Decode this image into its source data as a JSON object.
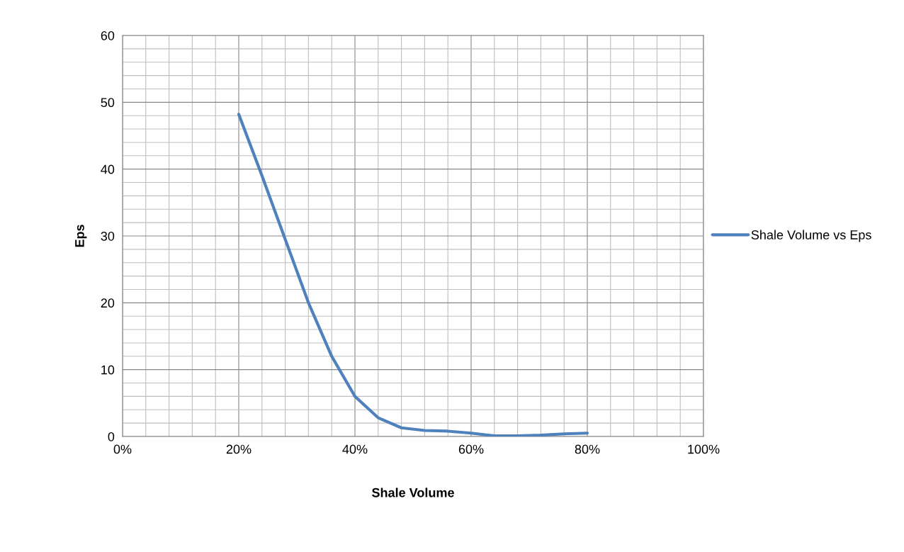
{
  "chart_data": {
    "type": "line",
    "xlabel": "Shale Volume",
    "ylabel": "Eps",
    "xlim": [
      0,
      1
    ],
    "ylim": [
      0,
      60
    ],
    "xticks": [
      {
        "value": 0,
        "label": "0%"
      },
      {
        "value": 0.2,
        "label": "20%"
      },
      {
        "value": 0.4,
        "label": "40%"
      },
      {
        "value": 0.6,
        "label": "60%"
      },
      {
        "value": 0.8,
        "label": "80%"
      },
      {
        "value": 1,
        "label": "100%"
      }
    ],
    "yticks": [
      0,
      10,
      20,
      30,
      40,
      50,
      60
    ],
    "grid": true,
    "legend": "right",
    "marker": "none",
    "line_style": "solid",
    "series": [
      {
        "name": "Shale Volume vs Eps",
        "color": "#4f81bd",
        "x": [
          0.2,
          0.24,
          0.28,
          0.32,
          0.36,
          0.4,
          0.44,
          0.48,
          0.52,
          0.56,
          0.6,
          0.64,
          0.68,
          0.72,
          0.76,
          0.8
        ],
        "values": [
          48.2,
          39,
          29.5,
          20,
          12,
          6,
          2.8,
          1.3,
          0.9,
          0.8,
          0.5,
          0.1,
          0.1,
          0.2,
          0.4,
          0.5
        ]
      }
    ]
  }
}
